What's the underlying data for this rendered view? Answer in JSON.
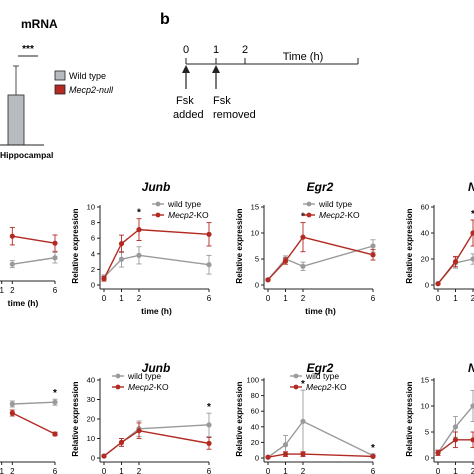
{
  "colors": {
    "wild_type": "#9a9a9a",
    "mecp2": "#b22a22",
    "bar_fill": "#b8bcc0",
    "axis": "#222222"
  },
  "panel_a": {
    "title": "mRNA",
    "significance": "***",
    "category": "Hippocampal",
    "legend": [
      "Wild type",
      "Mecp2-null"
    ]
  },
  "panel_b": {
    "label": "b",
    "ticks": [
      "0",
      "1",
      "2",
      "6"
    ],
    "axis_title": "Time (h)",
    "fsk_added": [
      "Fsk",
      "added"
    ],
    "fsk_removed": [
      "Fsk",
      "removed"
    ]
  },
  "chart_data": [
    {
      "type": "bar",
      "title": "mRNA",
      "categories": [
        "Hippocampal"
      ],
      "series": [
        {
          "name": "Wild type",
          "values": [
            1.0
          ],
          "err": [
            0.3
          ]
        }
      ],
      "annotations": [
        "***"
      ]
    },
    {
      "type": "line",
      "title": "",
      "xlabel": "time (h)",
      "ylabel": "",
      "x": [
        0,
        1,
        2,
        6
      ],
      "legend": [],
      "series": [
        {
          "name": "",
          "values": [
            null,
            null,
            2.2,
            3.3
          ],
          "err": [
            0,
            0,
            0.6,
            0.9
          ]
        },
        {
          "name": "",
          "values": [
            null,
            null,
            7.0,
            5.8
          ],
          "err": [
            0,
            0,
            1.5,
            1.4
          ]
        }
      ],
      "ylim": [
        0,
        12
      ]
    },
    {
      "type": "line",
      "title": "Junb",
      "xlabel": "time (h)",
      "ylabel": "Relative expression",
      "x": [
        0,
        1,
        2,
        6
      ],
      "legend": [
        "wild type",
        "Mecp2-KO"
      ],
      "series": [
        {
          "name": "wild type",
          "values": [
            1.0,
            3.3,
            3.8,
            2.6
          ],
          "err": [
            0.3,
            1.0,
            1.1,
            1.2
          ]
        },
        {
          "name": "Mecp2-KO",
          "values": [
            0.8,
            5.3,
            7.1,
            6.5
          ],
          "err": [
            0.3,
            1.1,
            1.4,
            1.5
          ]
        }
      ],
      "annotations": [
        "*"
      ],
      "yticks": [
        "0",
        "2",
        "4",
        "6",
        "8",
        "10"
      ],
      "ylim": [
        0,
        10
      ]
    },
    {
      "type": "line",
      "title": "Egr2",
      "xlabel": "time (h)",
      "ylabel": "Relative expression",
      "x": [
        0,
        1,
        2,
        6
      ],
      "legend": [
        "wild type",
        "Mecp2-KO"
      ],
      "series": [
        {
          "name": "wild type",
          "values": [
            1.0,
            5.0,
            3.6,
            7.5
          ],
          "err": [
            0.2,
            0.6,
            0.8,
            1.2
          ]
        },
        {
          "name": "Mecp2-KO",
          "values": [
            1.0,
            4.6,
            9.2,
            5.8
          ],
          "err": [
            0.2,
            0.6,
            2.8,
            1.0
          ]
        }
      ],
      "annotations": [
        "*"
      ],
      "yticks": [
        "0",
        "5",
        "10",
        "15"
      ],
      "ylim": [
        0,
        15
      ]
    },
    {
      "type": "line",
      "title": "N",
      "xlabel": "tim",
      "ylabel": "Relative expression",
      "x": [
        0,
        1,
        2,
        6
      ],
      "legend": [],
      "series": [
        {
          "name": "",
          "values": [
            1.0,
            17.0,
            20.0,
            null
          ],
          "err": [
            0.5,
            4.0,
            4.0,
            0
          ]
        },
        {
          "name": "",
          "values": [
            1.0,
            18.0,
            40.0,
            null
          ],
          "err": [
            0.5,
            4.0,
            10.0,
            0
          ]
        }
      ],
      "annotations": [
        "*"
      ],
      "yticks": [
        "0",
        "20",
        "40",
        "60"
      ],
      "ylim": [
        0,
        60
      ]
    },
    {
      "type": "line",
      "title": "",
      "xlabel": "time (h)",
      "ylabel": "",
      "x": [
        0,
        1,
        2,
        6
      ],
      "legend": [],
      "series": [
        {
          "name": "",
          "values": [
            null,
            null,
            0.9,
            0.93
          ],
          "err": [
            0,
            0,
            0.05,
            0.05
          ]
        },
        {
          "name": "",
          "values": [
            null,
            null,
            0.75,
            0.4
          ],
          "err": [
            0,
            0,
            0.05,
            0.03
          ]
        }
      ],
      "annotations": [
        "*"
      ],
      "ylim": [
        0,
        1.3
      ]
    },
    {
      "type": "line",
      "title": "Junb",
      "xlabel": "time (h)",
      "ylabel": "Relative expression",
      "x": [
        0,
        1,
        2,
        6
      ],
      "legend": [
        "wild type",
        "Mecp2-KO"
      ],
      "series": [
        {
          "name": "wild type",
          "values": [
            1.0,
            8.0,
            15.0,
            17.0
          ],
          "err": [
            0.5,
            2.0,
            4.0,
            6.0
          ]
        },
        {
          "name": "Mecp2-KO",
          "values": [
            1.0,
            8.0,
            14.0,
            7.5
          ],
          "err": [
            0.5,
            2.0,
            4.0,
            3.0
          ]
        }
      ],
      "annotations": [
        "*"
      ],
      "yticks": [
        "0",
        "10",
        "20",
        "30",
        "40"
      ],
      "ylim": [
        0,
        40
      ]
    },
    {
      "type": "line",
      "title": "Egr2",
      "xlabel": "time (h)",
      "ylabel": "Relative expression",
      "x": [
        0,
        1,
        2,
        6
      ],
      "legend": [
        "wild type",
        "Mecp2-KO"
      ],
      "series": [
        {
          "name": "wild type",
          "values": [
            1.0,
            17.0,
            47.0,
            3.0
          ],
          "err": [
            0.5,
            12.0,
            40.0,
            2.0
          ]
        },
        {
          "name": "Mecp2-KO",
          "values": [
            1.0,
            5.0,
            5.0,
            2.0
          ],
          "err": [
            0.5,
            3.0,
            3.0,
            1.0
          ]
        }
      ],
      "annotations": [
        "*",
        "*"
      ],
      "yticks": [
        "0",
        "20",
        "40",
        "60",
        "80",
        "100"
      ],
      "ylim": [
        0,
        100
      ]
    },
    {
      "type": "line",
      "title": "N",
      "xlabel": "",
      "ylabel": "Relative expression",
      "x": [
        0,
        1,
        2,
        6
      ],
      "legend": [],
      "series": [
        {
          "name": "",
          "values": [
            1.0,
            6.0,
            10.0,
            null
          ],
          "err": [
            0.5,
            2.0,
            3.0,
            0
          ]
        },
        {
          "name": "",
          "values": [
            1.0,
            3.5,
            3.5,
            null
          ],
          "err": [
            0.5,
            1.5,
            1.5,
            0
          ]
        }
      ],
      "yticks": [
        "0",
        "5",
        "10",
        "15"
      ],
      "ylim": [
        0,
        15
      ]
    }
  ]
}
